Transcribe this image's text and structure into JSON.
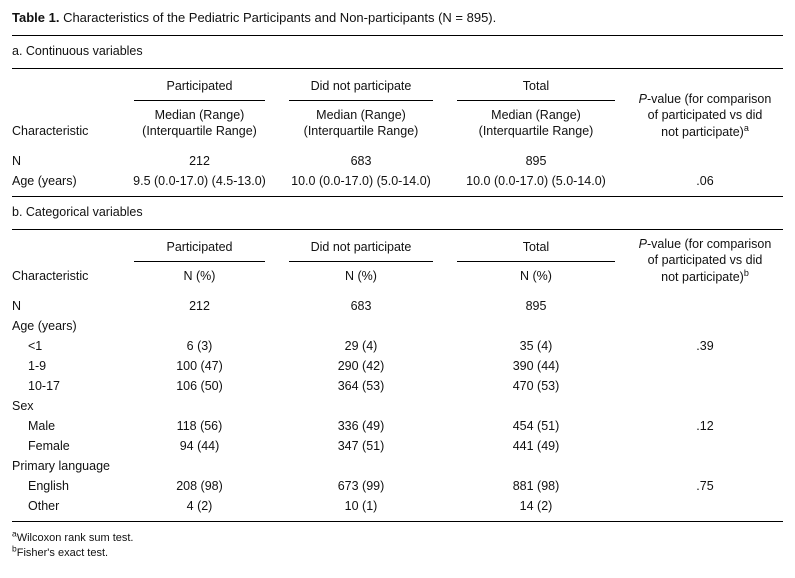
{
  "title": {
    "label": "Table 1.",
    "text": " Characteristics of the Pediatric Participants and Non-participants (N = 895)."
  },
  "colors": {
    "text": "#111111",
    "rule": "#000000",
    "background": "#ffffff"
  },
  "section_a": {
    "label": "a. Continuous variables",
    "header": {
      "characteristic": "Characteristic",
      "groups": [
        "Participated",
        "Did not participate",
        "Total"
      ],
      "sub_line1": "Median (Range)",
      "sub_line2": "(Interquartile Range)",
      "pvalue": {
        "italic": "P",
        "line1_rest": "-value (for comparison",
        "line2": "of participated vs did",
        "line3": "not participate)",
        "sup": "a"
      }
    },
    "rows": [
      {
        "label": "N",
        "indent": false,
        "cells": [
          "212",
          "683",
          "895",
          ""
        ]
      },
      {
        "label": "Age (years)",
        "indent": false,
        "cells": [
          "9.5 (0.0-17.0) (4.5-13.0)",
          "10.0 (0.0-17.0) (5.0-14.0)",
          "10.0 (0.0-17.0) (5.0-14.0)",
          ".06"
        ]
      }
    ]
  },
  "section_b": {
    "label": "b. Categorical variables",
    "header": {
      "characteristic": "Characteristic",
      "groups": [
        "Participated",
        "Did not participate",
        "Total"
      ],
      "sub": "N (%)",
      "pvalue": {
        "italic": "P",
        "line1_rest": "-value (for comparison",
        "line2": "of participated vs did",
        "line3": "not participate)",
        "sup": "b"
      }
    },
    "rows": [
      {
        "label": "N",
        "indent": false,
        "cells": [
          "212",
          "683",
          "895",
          ""
        ]
      },
      {
        "label": "Age (years)",
        "indent": false,
        "cells": [
          "",
          "",
          "",
          ""
        ]
      },
      {
        "label": "<1",
        "indent": true,
        "cells": [
          "6 (3)",
          "29 (4)",
          "35 (4)",
          ".39"
        ]
      },
      {
        "label": "1-9",
        "indent": true,
        "cells": [
          "100 (47)",
          "290 (42)",
          "390 (44)",
          ""
        ]
      },
      {
        "label": "10-17",
        "indent": true,
        "cells": [
          "106 (50)",
          "364 (53)",
          "470 (53)",
          ""
        ]
      },
      {
        "label": "Sex",
        "indent": false,
        "cells": [
          "",
          "",
          "",
          ""
        ]
      },
      {
        "label": "Male",
        "indent": true,
        "cells": [
          "118 (56)",
          "336 (49)",
          "454 (51)",
          ".12"
        ]
      },
      {
        "label": "Female",
        "indent": true,
        "cells": [
          "94 (44)",
          "347 (51)",
          "441 (49)",
          ""
        ]
      },
      {
        "label": "Primary language",
        "indent": false,
        "cells": [
          "",
          "",
          "",
          ""
        ]
      },
      {
        "label": "English",
        "indent": true,
        "cells": [
          "208 (98)",
          "673 (99)",
          "881 (98)",
          ".75"
        ]
      },
      {
        "label": "Other",
        "indent": true,
        "cells": [
          "4 (2)",
          "10 (1)",
          "14 (2)",
          ""
        ]
      }
    ]
  },
  "footnotes": [
    {
      "sup": "a",
      "text": "Wilcoxon rank sum test."
    },
    {
      "sup": "b",
      "text": "Fisher's exact test."
    }
  ]
}
